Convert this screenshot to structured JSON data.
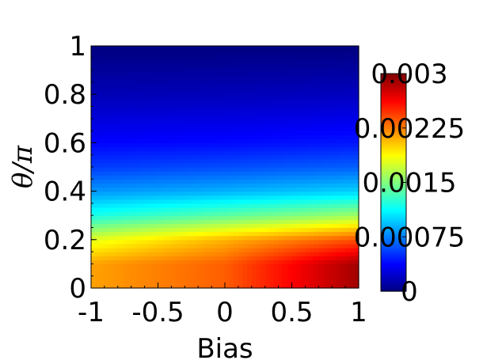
{
  "chart_data": {
    "type": "heatmap",
    "title": "",
    "xlabel": "Bias",
    "ylabel": "θ/π",
    "xlim": [
      -1,
      1
    ],
    "ylim": [
      0,
      1
    ],
    "x_ticks": [
      {
        "value": -1,
        "label": "-1"
      },
      {
        "value": -0.5,
        "label": "-0.5"
      },
      {
        "value": 0,
        "label": "0"
      },
      {
        "value": 0.5,
        "label": "0.5"
      },
      {
        "value": 1,
        "label": "1"
      }
    ],
    "y_ticks": [
      {
        "value": 0,
        "label": "0"
      },
      {
        "value": 0.2,
        "label": "0.2"
      },
      {
        "value": 0.4,
        "label": "0.4"
      },
      {
        "value": 0.6,
        "label": "0.6"
      },
      {
        "value": 0.8,
        "label": "0.8"
      },
      {
        "value": 1,
        "label": "1"
      }
    ],
    "colormap": "jet",
    "colorbar": {
      "range": [
        0,
        0.003
      ],
      "ticks": [
        {
          "value": 0,
          "label": "0"
        },
        {
          "value": 0.00075,
          "label": "0.00075"
        },
        {
          "value": 0.0015,
          "label": "0.0015"
        },
        {
          "value": 0.00225,
          "label": "0.00225"
        },
        {
          "value": 0.003,
          "label": "0.003"
        }
      ]
    },
    "field_samples": {
      "bias": [
        -1,
        0,
        1
      ],
      "theta_over_pi": [
        0,
        0.1,
        0.2,
        0.3,
        0.4,
        0.5,
        0.6,
        0.8,
        1.0
      ],
      "z": [
        [
          0.00215,
          0.00215,
          0.0018,
          0.0012,
          0.00082,
          0.00055,
          0.00038,
          0.00016,
          0.0
        ],
        [
          0.00235,
          0.00235,
          0.0021,
          0.0014,
          0.0009,
          0.0006,
          0.0004,
          0.00017,
          0.0
        ],
        [
          0.0029,
          0.0029,
          0.0024,
          0.0016,
          0.001,
          0.00066,
          0.00044,
          0.00019,
          0.0
        ]
      ]
    }
  }
}
